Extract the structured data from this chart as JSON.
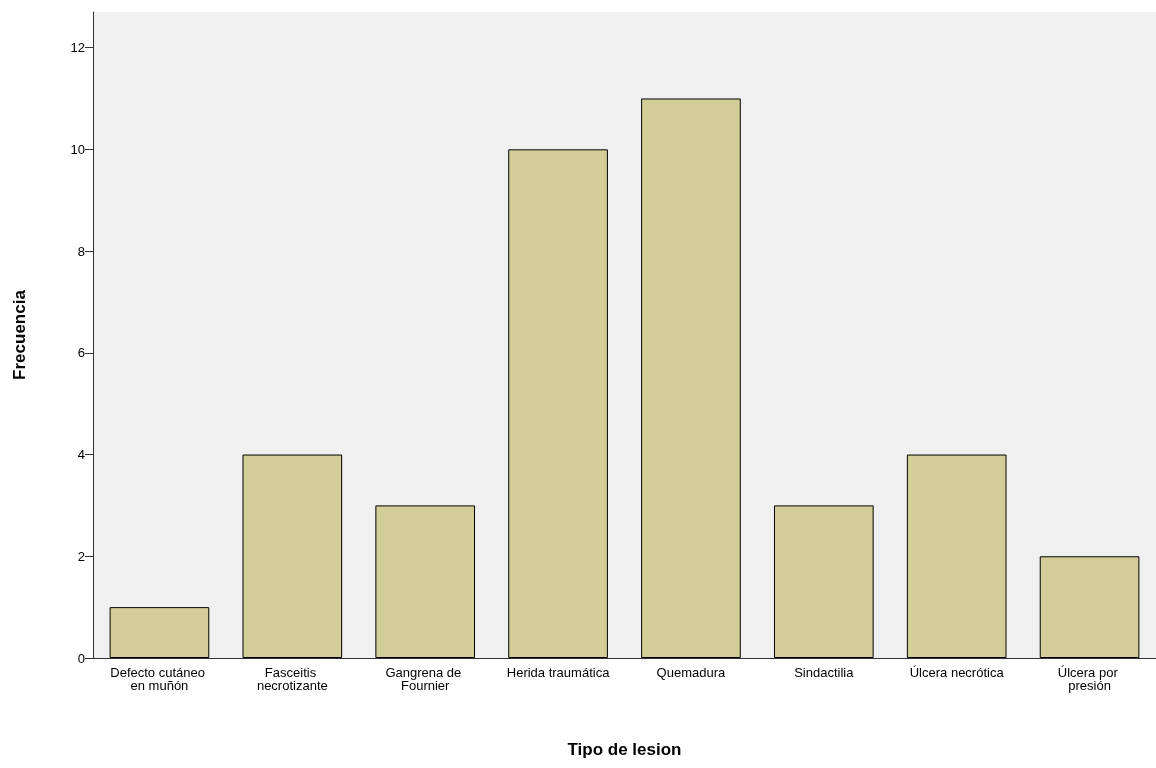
{
  "chart_data": {
    "type": "bar",
    "xlabel": "Tipo de lesion",
    "ylabel": "Frecuencia",
    "categories": [
      "Defecto cutáneo en muñón",
      "Fasceitis necrotizante",
      "Gangrena de Fournier",
      "Herida traumática",
      "Quemadura",
      "Sindactilia",
      "Úlcera necrótica",
      "Úlcera por presión"
    ],
    "values": [
      1,
      4,
      3,
      10,
      11,
      3,
      4,
      2
    ],
    "color": "#d3ce97",
    "ylim": [
      0,
      12.7
    ],
    "yticks": [
      0,
      2,
      4,
      6,
      8,
      10,
      12
    ],
    "grid": false
  }
}
